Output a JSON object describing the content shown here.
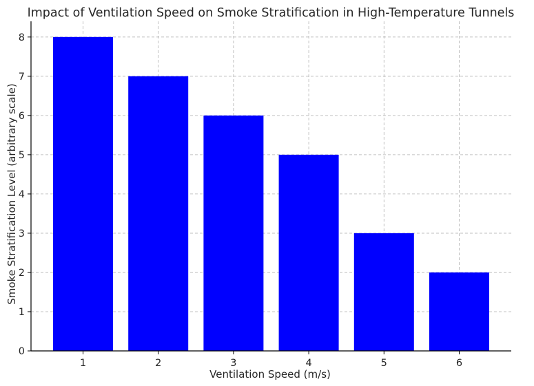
{
  "chart_data": {
    "type": "bar",
    "title": "Impact of Ventilation Speed on Smoke Stratification in High-Temperature Tunnels",
    "xlabel": "Ventilation Speed (m/s)",
    "ylabel": "Smoke Stratification Level (arbitrary scale)",
    "categories": [
      "1",
      "2",
      "3",
      "4",
      "5",
      "6"
    ],
    "values": [
      8,
      7,
      6,
      5,
      3,
      2
    ],
    "ylim": [
      0,
      8.4
    ],
    "yticks": [
      "0",
      "1",
      "2",
      "3",
      "4",
      "5",
      "6",
      "7",
      "8"
    ],
    "grid": true,
    "bar_color": "#0000ff"
  }
}
